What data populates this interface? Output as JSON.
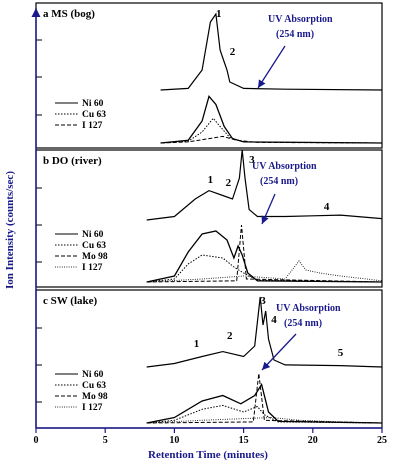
{
  "chart_data": {
    "type": "line",
    "xlabel": "Retention Time (minutes)",
    "ylabel": "Ion Intensity (counts/sec)",
    "xlim": [
      0,
      25
    ],
    "xticks": [
      0,
      5,
      10,
      15,
      20,
      25
    ],
    "colors": {
      "axis": "#1a1a8c",
      "curve": "#000000"
    },
    "panels": [
      {
        "title": "a MS (bog)",
        "uv_label": [
          "UV Absorption",
          "(254 nm)"
        ],
        "legend": [
          "Ni 60",
          "Cu 63",
          "I 127"
        ],
        "peak_labels": [
          {
            "text": "1",
            "x": 13.2
          },
          {
            "text": "2",
            "x": 14.2
          }
        ],
        "uv_trace": [
          [
            9,
            0
          ],
          [
            11,
            0.02
          ],
          [
            12,
            0.25
          ],
          [
            12.6,
            0.85
          ],
          [
            13,
            0.95
          ],
          [
            13.3,
            0.5
          ],
          [
            13.6,
            0.35
          ],
          [
            13.8,
            0.25
          ],
          [
            14,
            0.1
          ],
          [
            15,
            0.02
          ],
          [
            18,
            0.01
          ],
          [
            25,
            0
          ]
        ],
        "icp_traces": [
          [
            [
              9,
              0
            ],
            [
              11,
              0.05
            ],
            [
              12,
              0.4
            ],
            [
              12.5,
              0.85
            ],
            [
              13,
              0.7
            ],
            [
              13.6,
              0.3
            ],
            [
              14.2,
              0.08
            ],
            [
              15,
              0.02
            ],
            [
              25,
              0
            ]
          ],
          [
            [
              9,
              0
            ],
            [
              11,
              0.03
            ],
            [
              12,
              0.2
            ],
            [
              12.8,
              0.45
            ],
            [
              13.3,
              0.3
            ],
            [
              14,
              0.1
            ],
            [
              15,
              0.02
            ],
            [
              25,
              0
            ]
          ],
          [
            [
              9,
              0
            ],
            [
              11,
              0.02
            ],
            [
              12.5,
              0.08
            ],
            [
              13.5,
              0.12
            ],
            [
              14.5,
              0.05
            ],
            [
              16,
              0.01
            ],
            [
              25,
              0
            ]
          ]
        ]
      },
      {
        "title": "b DO (river)",
        "uv_label": [
          "UV Absorption",
          "(254 nm)"
        ],
        "legend": [
          "Ni 60",
          "Cu 63",
          "Mo 98",
          "I 127"
        ],
        "peak_labels": [
          {
            "text": "1",
            "x": 12.6
          },
          {
            "text": "2",
            "x": 13.9
          },
          {
            "text": "3",
            "x": 15.6
          },
          {
            "text": "4",
            "x": 21.0
          }
        ],
        "uv_trace": [
          [
            8,
            0
          ],
          [
            10,
            0.05
          ],
          [
            11.5,
            0.3
          ],
          [
            12.5,
            0.42
          ],
          [
            13.5,
            0.35
          ],
          [
            14.2,
            0.3
          ],
          [
            14.7,
            0.6
          ],
          [
            14.9,
            1.0
          ],
          [
            15.1,
            0.6
          ],
          [
            15.4,
            0.15
          ],
          [
            16,
            0.05
          ],
          [
            18,
            0.05
          ],
          [
            20,
            0.06
          ],
          [
            22,
            0.07
          ],
          [
            25,
            0.02
          ]
        ],
        "icp_traces": [
          [
            [
              8,
              0
            ],
            [
              10,
              0.1
            ],
            [
              11,
              0.5
            ],
            [
              12,
              0.8
            ],
            [
              13,
              0.85
            ],
            [
              13.8,
              0.7
            ],
            [
              14.3,
              0.4
            ],
            [
              14.6,
              0.6
            ],
            [
              14.9,
              0.45
            ],
            [
              15.3,
              0.15
            ],
            [
              16,
              0.02
            ],
            [
              25,
              0
            ]
          ],
          [
            [
              8,
              0
            ],
            [
              10,
              0.05
            ],
            [
              11,
              0.3
            ],
            [
              12,
              0.45
            ],
            [
              13.5,
              0.4
            ],
            [
              14.3,
              0.25
            ],
            [
              15,
              0.15
            ],
            [
              16,
              0.03
            ],
            [
              25,
              0
            ]
          ],
          [
            [
              8,
              0
            ],
            [
              14.5,
              0.02
            ],
            [
              14.85,
              0.95
            ],
            [
              15.2,
              0.05
            ],
            [
              25,
              0
            ]
          ],
          [
            [
              8,
              0
            ],
            [
              12,
              0.05
            ],
            [
              15,
              0.1
            ],
            [
              18,
              0.05
            ],
            [
              19,
              0.35
            ],
            [
              19.5,
              0.2
            ],
            [
              20.5,
              0.15
            ],
            [
              22,
              0.1
            ],
            [
              25,
              0.02
            ]
          ]
        ]
      },
      {
        "title": "c SW (lake)",
        "uv_label": [
          "UV Absorption",
          "(254 nm)"
        ],
        "legend": [
          "Ni 60",
          "Cu 63",
          "Mo 98",
          "I 127"
        ],
        "peak_labels": [
          {
            "text": "1",
            "x": 11.6
          },
          {
            "text": "2",
            "x": 14.0
          },
          {
            "text": "3",
            "x": 16.4
          },
          {
            "text": "4",
            "x": 17.2
          },
          {
            "text": "5",
            "x": 22.0
          }
        ],
        "uv_trace": [
          [
            8,
            0
          ],
          [
            10,
            0.05
          ],
          [
            12,
            0.15
          ],
          [
            13.5,
            0.22
          ],
          [
            15,
            0.15
          ],
          [
            15.8,
            0.3
          ],
          [
            16.2,
            1.0
          ],
          [
            16.4,
            0.6
          ],
          [
            16.6,
            0.8
          ],
          [
            16.8,
            0.4
          ],
          [
            17.2,
            0.1
          ],
          [
            18,
            0.03
          ],
          [
            22,
            0.02
          ],
          [
            25,
            0
          ]
        ],
        "icp_traces": [
          [
            [
              8,
              0
            ],
            [
              10,
              0.1
            ],
            [
              12,
              0.4
            ],
            [
              13.5,
              0.5
            ],
            [
              14.8,
              0.35
            ],
            [
              15.8,
              0.5
            ],
            [
              16.3,
              0.7
            ],
            [
              16.8,
              0.2
            ],
            [
              17.5,
              0.03
            ],
            [
              25,
              0
            ]
          ],
          [
            [
              8,
              0
            ],
            [
              10,
              0.05
            ],
            [
              12,
              0.25
            ],
            [
              13.5,
              0.32
            ],
            [
              15,
              0.2
            ],
            [
              16,
              0.3
            ],
            [
              16.5,
              0.15
            ],
            [
              17.5,
              0.02
            ],
            [
              25,
              0
            ]
          ],
          [
            [
              8,
              0
            ],
            [
              15.7,
              0.02
            ],
            [
              16.1,
              0.9
            ],
            [
              16.5,
              0.05
            ],
            [
              25,
              0
            ]
          ],
          [
            [
              8,
              0
            ],
            [
              12,
              0.05
            ],
            [
              15,
              0.08
            ],
            [
              17,
              0.1
            ],
            [
              19,
              0.05
            ],
            [
              22,
              0.02
            ],
            [
              25,
              0
            ]
          ]
        ]
      }
    ]
  }
}
